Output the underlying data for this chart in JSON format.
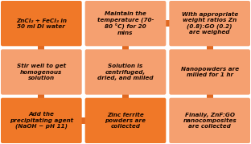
{
  "background_color": "#ffffff",
  "box_color_dark": "#f07828",
  "box_color_light": "#f5a878",
  "connector_color": "#e06820",
  "text_color": "#1a0800",
  "boxes": [
    {
      "row": 0,
      "col": 0,
      "text": "ZnCl₂ + FeCl₃ in\n50 ml DI water"
    },
    {
      "row": 0,
      "col": 1,
      "text": "Maintain the\ntemperature (70-\n80 °C) for 20\nmins"
    },
    {
      "row": 0,
      "col": 2,
      "text": "With appropriate\nweight ratios Zn\n(0.8):GO (0.2)\nare weighed"
    },
    {
      "row": 1,
      "col": 0,
      "text": "Stir well to get\nhomogenous\nsolution"
    },
    {
      "row": 1,
      "col": 1,
      "text": "Solution is\ncentrifuged,\ndried, and milled"
    },
    {
      "row": 1,
      "col": 2,
      "text": "Nanopowders are\nmilled for 1 hr"
    },
    {
      "row": 2,
      "col": 0,
      "text": "Add the\nprecipitating agent\n(NaOH ~ pH 11)"
    },
    {
      "row": 2,
      "col": 1,
      "text": "Zinc ferrite\npowders are\ncollected"
    },
    {
      "row": 2,
      "col": 2,
      "text": "Finally, ZnF:GO\nnanocomposites\nare collected"
    }
  ],
  "box_colors": [
    [
      "#f07828",
      "#f5a070",
      "#f5a070"
    ],
    [
      "#f5a070",
      "#f5a070",
      "#f5a070"
    ],
    [
      "#f07828",
      "#f07828",
      "#f5a070"
    ]
  ],
  "figsize": [
    3.12,
    1.79
  ],
  "dpi": 100
}
